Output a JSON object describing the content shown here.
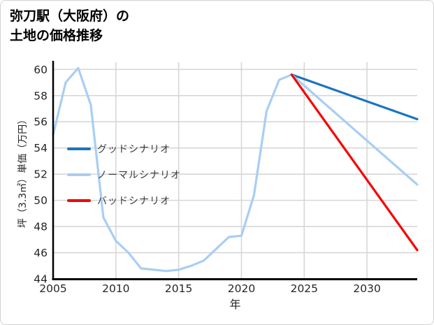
{
  "title": {
    "line1": "弥刀駅（大阪府）の",
    "line2": "土地の価格推移"
  },
  "axes": {
    "xlabel": "年",
    "ylabel": "坪（3.3㎡）単価（万円）"
  },
  "legend": {
    "items": [
      {
        "label": "グッドシナリオ",
        "color": "#1a75bf"
      },
      {
        "label": "ノーマルシナリオ",
        "color": "#a8cef3"
      },
      {
        "label": "バッドシナリオ",
        "color": "#f70000"
      }
    ]
  },
  "colors": {
    "good": "#1a75bf",
    "normal": "#a8cef3",
    "bad": "#f70000",
    "grid": "#d7d7d7",
    "spine": "#000000",
    "tick_text": "#262626"
  },
  "chart_data": {
    "type": "line",
    "title": "弥刀駅（大阪府）の土地の価格推移",
    "xlabel": "年",
    "ylabel": "坪（3.3㎡）単価（万円）",
    "xlim": [
      2005,
      2034
    ],
    "ylim": [
      44,
      60.55
    ],
    "x_ticks": [
      2005,
      2010,
      2015,
      2020,
      2025,
      2030
    ],
    "y_ticks": [
      44,
      46,
      48,
      50,
      52,
      54,
      56,
      58,
      60
    ],
    "grid": true,
    "legend_position": "upper-left-inside",
    "series": [
      {
        "name": "history",
        "legend": false,
        "color": "#a8cef3",
        "x": [
          2005,
          2006,
          2007,
          2008,
          2009,
          2010,
          2011,
          2012,
          2013,
          2014,
          2015,
          2016,
          2017,
          2018,
          2019,
          2020,
          2021,
          2022,
          2023,
          2024
        ],
        "y": [
          55.0,
          59.0,
          60.1,
          57.3,
          48.7,
          46.9,
          46.0,
          44.8,
          44.7,
          44.6,
          44.7,
          45.0,
          45.4,
          46.3,
          47.2,
          47.3,
          50.4,
          56.8,
          59.2,
          59.6
        ]
      },
      {
        "name": "グッドシナリオ",
        "legend": true,
        "color": "#1a75bf",
        "x": [
          2024,
          2034
        ],
        "y": [
          59.6,
          56.2
        ]
      },
      {
        "name": "ノーマルシナリオ",
        "legend": true,
        "color": "#a8cef3",
        "x": [
          2024,
          2034
        ],
        "y": [
          59.6,
          51.2
        ]
      },
      {
        "name": "バッドシナリオ",
        "legend": true,
        "color": "#f70000",
        "x": [
          2024,
          2034
        ],
        "y": [
          59.6,
          46.2
        ]
      }
    ]
  }
}
